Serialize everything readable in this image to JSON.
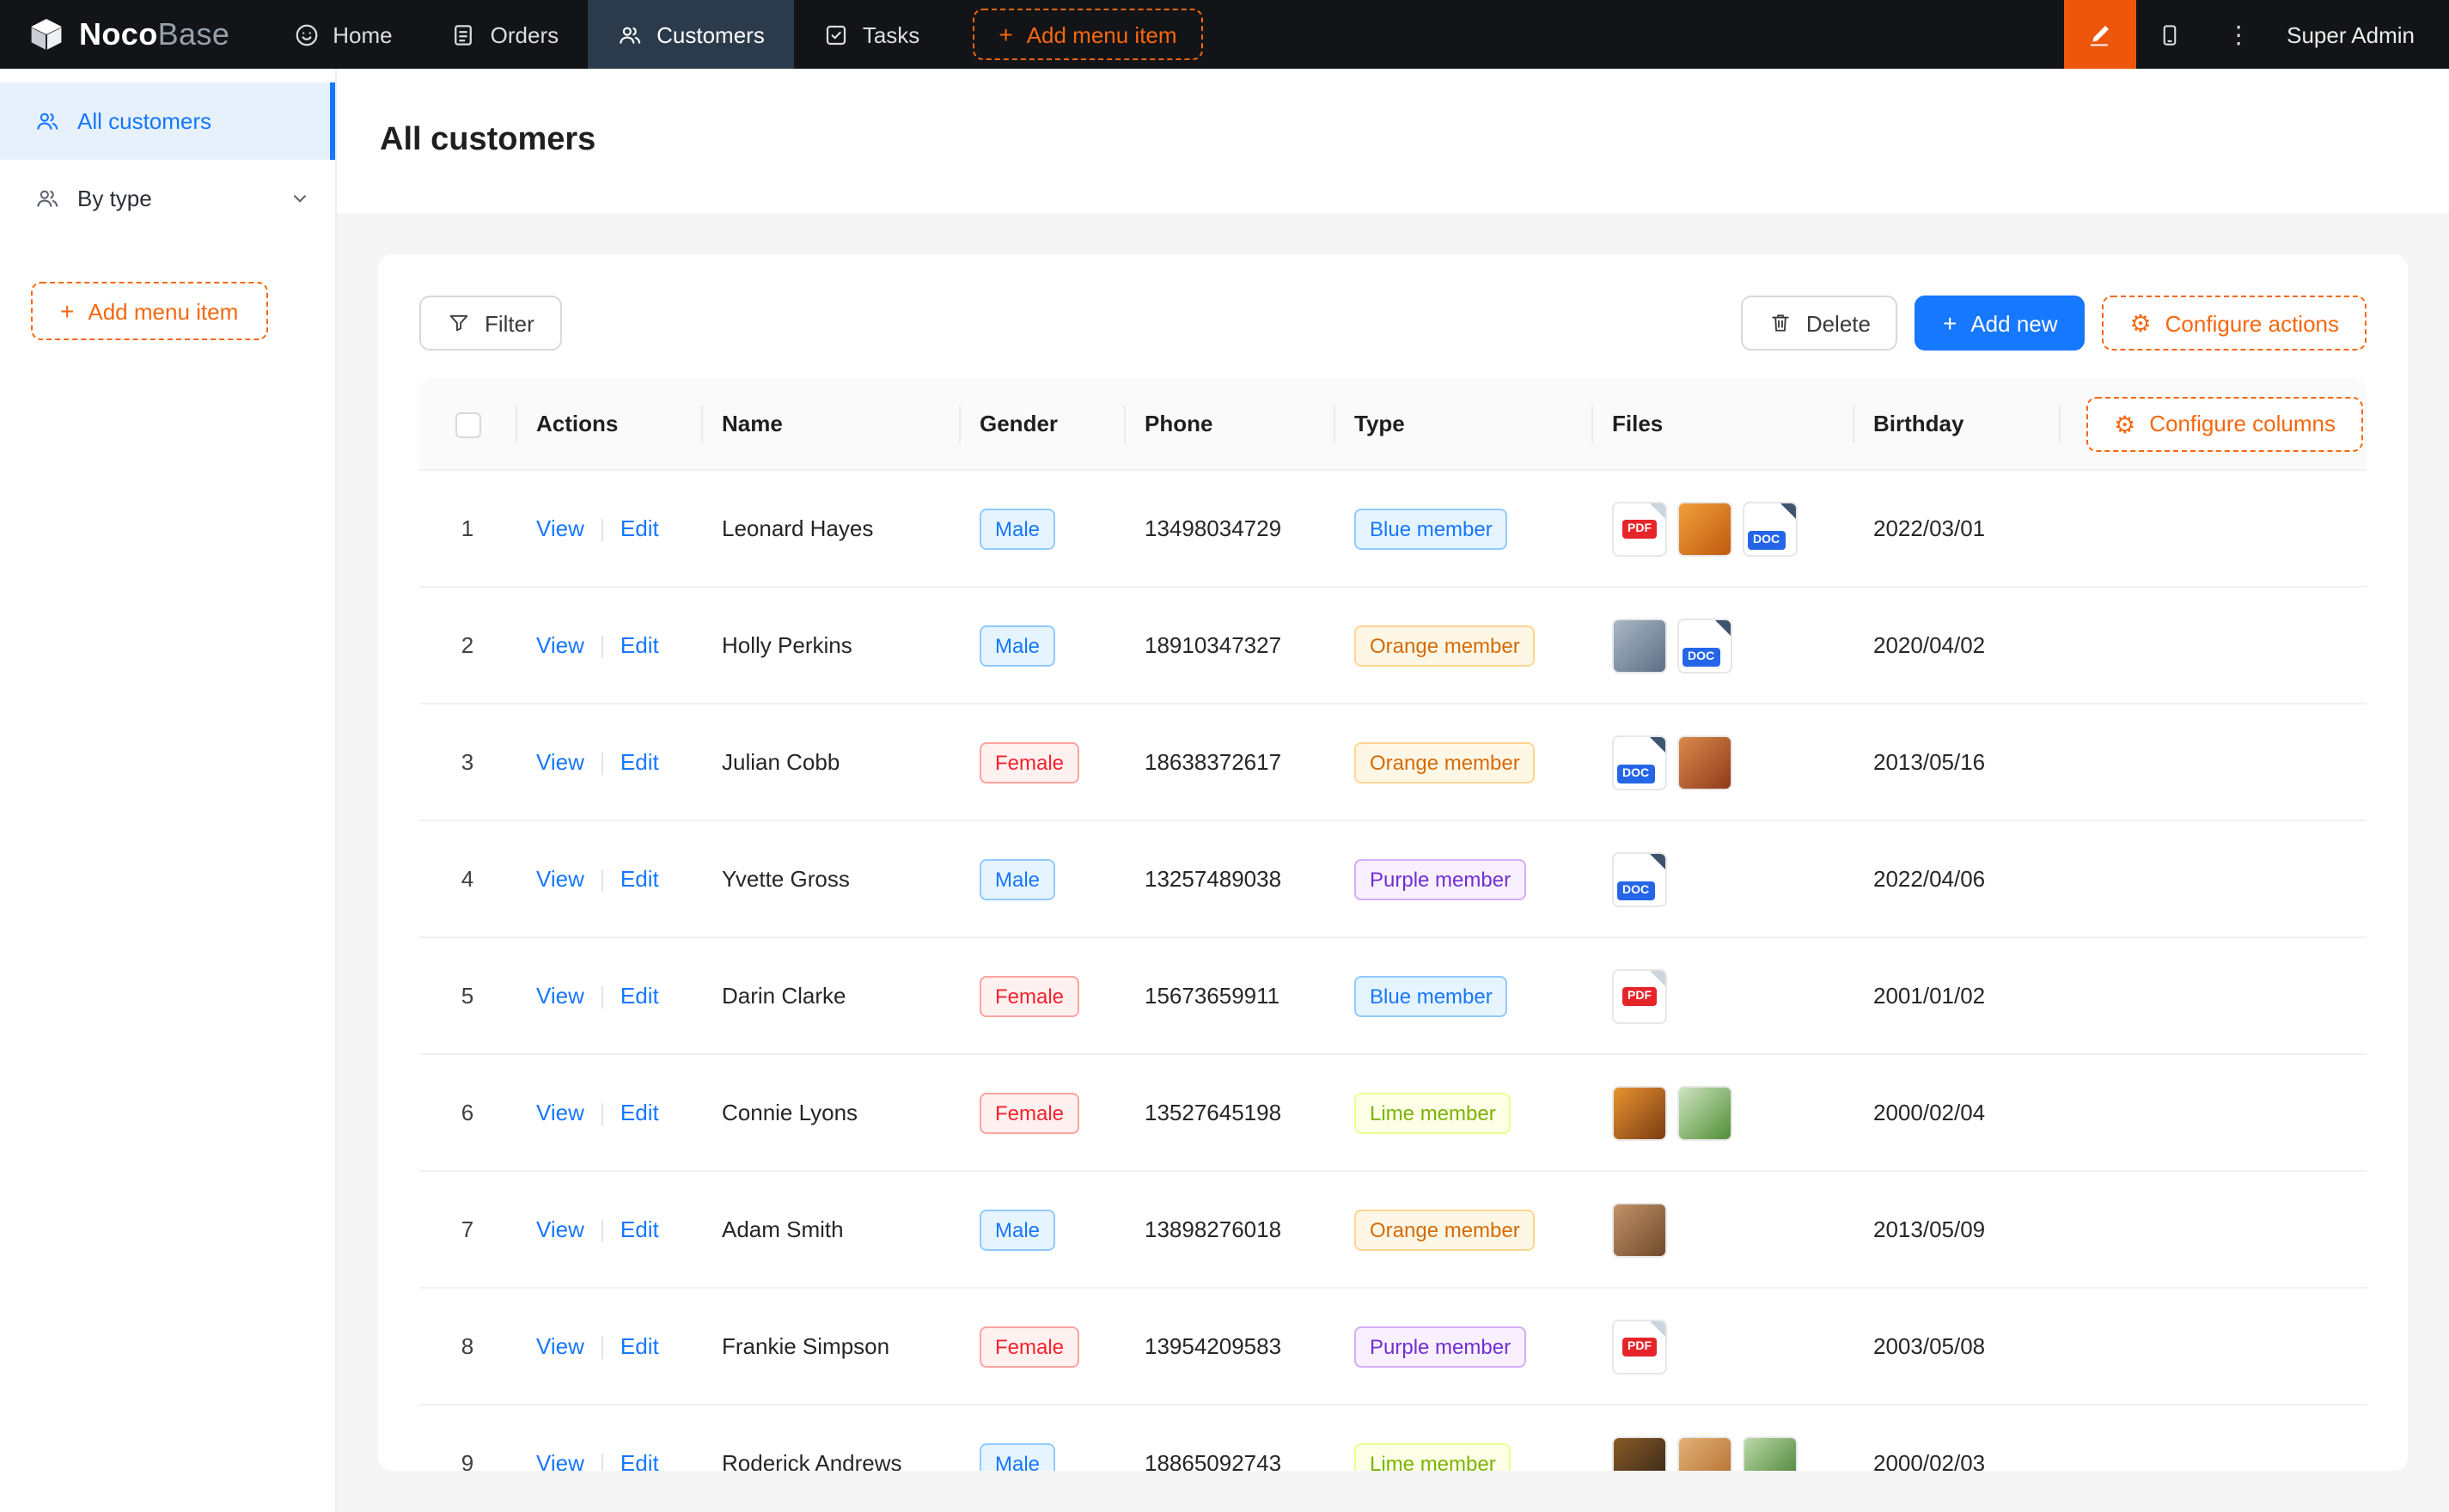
{
  "app": {
    "brand_primary": "Noco",
    "brand_secondary": "Base"
  },
  "colors": {
    "navbar_bg": "#121417",
    "navbar_active_bg": "#2c3b4c",
    "accent_orange": "#f7670f",
    "designer_button_bg": "#ee560b",
    "primary_blue": "#1677ff",
    "link_blue": "#1677ff",
    "page_bg": "#f5f5f5",
    "sidebar_active_bg": "#e6f1fb",
    "header_bg": "#fafafa"
  },
  "icons": {
    "plus": "+",
    "gear": "⚙",
    "ellipsis": "⋮",
    "pdf_badge": "PDF",
    "doc_badge": "DOC"
  },
  "navbar": {
    "items": [
      {
        "label": "Home",
        "icon": "home-icon"
      },
      {
        "label": "Orders",
        "icon": "orders-icon"
      },
      {
        "label": "Customers",
        "icon": "customers-icon",
        "active": true
      },
      {
        "label": "Tasks",
        "icon": "tasks-icon"
      }
    ],
    "add_menu_item_label": "Add menu item",
    "user": "Super Admin"
  },
  "sidebar": {
    "items": [
      {
        "label": "All customers",
        "active": true
      },
      {
        "label": "By type"
      }
    ],
    "add_menu_item_label": "Add menu item"
  },
  "page": {
    "title": "All customers"
  },
  "toolbar": {
    "filter": "Filter",
    "delete": "Delete",
    "add_new": "Add new",
    "configure_actions": "Configure actions"
  },
  "table": {
    "columns": [
      "Actions",
      "Name",
      "Gender",
      "Phone",
      "Type",
      "Files",
      "Birthday"
    ],
    "configure_columns": "Configure columns",
    "actions": {
      "view": "View",
      "edit": "Edit"
    },
    "rows": [
      {
        "index": 1,
        "name": "Leonard Hayes",
        "gender": "Male",
        "phone": "13498034729",
        "type": "Blue member",
        "birthday": "2022/03/01",
        "files": [
          {
            "kind": "pdf"
          },
          {
            "kind": "img",
            "colors": [
              "#f0a03a",
              "#c05a10"
            ]
          },
          {
            "kind": "doc"
          }
        ]
      },
      {
        "index": 2,
        "name": "Holly Perkins",
        "gender": "Male",
        "phone": "18910347327",
        "type": "Orange member",
        "birthday": "2020/04/02",
        "files": [
          {
            "kind": "img",
            "colors": [
              "#aab7c4",
              "#5d6f85"
            ]
          },
          {
            "kind": "doc"
          }
        ]
      },
      {
        "index": 3,
        "name": "Julian Cobb",
        "gender": "Female",
        "phone": "18638372617",
        "type": "Orange member",
        "birthday": "2013/05/16",
        "files": [
          {
            "kind": "doc"
          },
          {
            "kind": "img",
            "colors": [
              "#d98a4a",
              "#8f3b1b"
            ]
          }
        ]
      },
      {
        "index": 4,
        "name": "Yvette Gross",
        "gender": "Male",
        "phone": "13257489038",
        "type": "Purple member",
        "birthday": "2022/04/06",
        "files": [
          {
            "kind": "doc"
          }
        ]
      },
      {
        "index": 5,
        "name": "Darin Clarke",
        "gender": "Female",
        "phone": "15673659911",
        "type": "Blue member",
        "birthday": "2001/01/02",
        "files": [
          {
            "kind": "pdf"
          }
        ]
      },
      {
        "index": 6,
        "name": "Connie Lyons",
        "gender": "Female",
        "phone": "13527645198",
        "type": "Lime member",
        "birthday": "2000/02/04",
        "files": [
          {
            "kind": "img",
            "colors": [
              "#e8932f",
              "#7a3c12"
            ]
          },
          {
            "kind": "img",
            "colors": [
              "#cfe3c0",
              "#4f8f35"
            ]
          }
        ]
      },
      {
        "index": 7,
        "name": "Adam Smith",
        "gender": "Male",
        "phone": "13898276018",
        "type": "Orange member",
        "birthday": "2013/05/09",
        "files": [
          {
            "kind": "img",
            "colors": [
              "#c2926a",
              "#6f4a2a"
            ]
          }
        ]
      },
      {
        "index": 8,
        "name": "Frankie Simpson",
        "gender": "Female",
        "phone": "13954209583",
        "type": "Purple member",
        "birthday": "2003/05/08",
        "files": [
          {
            "kind": "pdf"
          }
        ]
      },
      {
        "index": 9,
        "name": "Roderick Andrews",
        "gender": "Male",
        "phone": "18865092743",
        "type": "Lime member",
        "birthday": "2000/02/03",
        "files": [
          {
            "kind": "img",
            "colors": [
              "#8a5a26",
              "#2f2418"
            ]
          },
          {
            "kind": "img",
            "colors": [
              "#e3b277",
              "#b06a2a"
            ]
          },
          {
            "kind": "img",
            "colors": [
              "#bcd9a8",
              "#3f7d2c"
            ]
          }
        ]
      }
    ]
  },
  "tag_styles": {
    "Male": {
      "bg": "#e6f4ff",
      "border": "#91caff",
      "text": "#1677ff"
    },
    "Female": {
      "bg": "#fff1f0",
      "border": "#ffa39e",
      "text": "#f5222d"
    },
    "Blue member": {
      "bg": "#e6f4ff",
      "border": "#91caff",
      "text": "#1677ff"
    },
    "Orange member": {
      "bg": "#fff7e6",
      "border": "#ffd591",
      "text": "#d46b08"
    },
    "Purple member": {
      "bg": "#f9f0ff",
      "border": "#d3adf7",
      "text": "#722ed1"
    },
    "Lime member": {
      "bg": "#fcffe6",
      "border": "#eaff8f",
      "text": "#7cb305"
    }
  }
}
